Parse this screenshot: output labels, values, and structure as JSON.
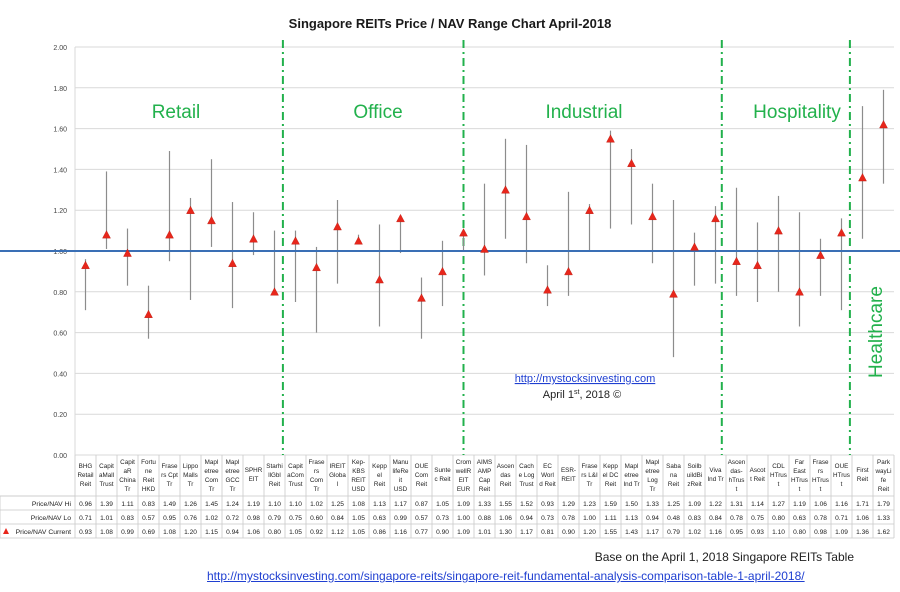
{
  "chart_data": {
    "type": "range",
    "title": "Singapore REITs Price / NAV Range Chart April-2018",
    "ylim": [
      0,
      2
    ],
    "yticks": [
      "0.00",
      "0.20",
      "0.40",
      "0.60",
      "0.80",
      "1.00",
      "1.20",
      "1.40",
      "1.60",
      "1.80",
      "2.00"
    ],
    "grid": true,
    "reference_line": 1.0,
    "categories": [
      "BHG Retail Reit",
      "CapitaMall Trust",
      "CapitaR China Tr",
      "Fortune Reit HKD",
      "Frasers Cpt Tr",
      "Lippo Malls Tr",
      "Mapletree Com Tr",
      "Mapletree GCC Tr",
      "SPHREIT",
      "Starhill Gbl Reit",
      "CapitaCom Trust",
      "Frasers Com Tr",
      "IREIT Global",
      "Kep-KBS REIT USD",
      "Keppel Reit",
      "ManulifeReit USD",
      "OUE Com Reit",
      "Suntec Reit",
      "CromwellREIT EUR",
      "AIMS AMP Cap Reit",
      "Ascendas Reit",
      "Cache Log Trust",
      "EC World Reit",
      "ESR-REIT",
      "Frasers L&I Tr",
      "Keppel DC Reit",
      "Mapletree Ind Tr",
      "Mapletree Log Tr",
      "Sabana Reit",
      "SoilbuildBizReit",
      "Viva Ind Tr",
      "Ascendas-hTrust",
      "Ascott Reit",
      "CDL HTrust",
      "Far East HTrust",
      "Frasers HTrust",
      "OUE HTrust",
      "First Reit",
      "ParkwayLife Reit"
    ],
    "category_labels": [
      [
        "BHG",
        "Retail",
        "Reit"
      ],
      [
        "Capit",
        "aMall",
        "Trust"
      ],
      [
        "Capit",
        "aR",
        "China",
        "Tr"
      ],
      [
        "Fortu",
        "ne",
        "Reit",
        "HKD"
      ],
      [
        "Frase",
        "rs Cpt",
        "Tr"
      ],
      [
        "Lippo",
        "Malls",
        "Tr"
      ],
      [
        "Mapl",
        "etree",
        "Com",
        "Tr"
      ],
      [
        "Mapl",
        "etree",
        "GCC",
        "Tr"
      ],
      [
        "SPHR",
        "EIT"
      ],
      [
        "Starhi",
        "llGbl",
        "Reit"
      ],
      [
        "Capit",
        "aCom",
        "Trust"
      ],
      [
        "Frase",
        "rs",
        "Com",
        "Tr"
      ],
      [
        "IREIT",
        "Globa",
        "l"
      ],
      [
        "Kep-",
        "KBS",
        "REIT",
        "USD"
      ],
      [
        "Kepp",
        "el",
        "Reit"
      ],
      [
        "Manu",
        "lifeRe",
        "it",
        "USD"
      ],
      [
        "OUE",
        "Com",
        "Reit"
      ],
      [
        "Sunte",
        "c Reit"
      ],
      [
        "Crom",
        "wellR",
        "EIT",
        "EUR"
      ],
      [
        "AIMS",
        "AMP",
        "Cap",
        "Reit"
      ],
      [
        "Ascen",
        "das",
        "Reit"
      ],
      [
        "Cach",
        "e Log",
        "Trust"
      ],
      [
        "EC",
        "Worl",
        "d Reit"
      ],
      [
        "ESR-",
        "REIT"
      ],
      [
        "Frase",
        "rs L&I",
        "Tr"
      ],
      [
        "Kepp",
        "el DC",
        "Reit"
      ],
      [
        "Mapl",
        "etree",
        "Ind Tr"
      ],
      [
        "Mapl",
        "etree",
        "Log",
        "Tr"
      ],
      [
        "Saba",
        "na",
        "Reit"
      ],
      [
        "Soilb",
        "uildBi",
        "zReit"
      ],
      [
        "Viva",
        "Ind Tr"
      ],
      [
        "Ascen",
        "das-",
        "hTrus",
        "t"
      ],
      [
        "Ascot",
        "t Reit"
      ],
      [
        "CDL",
        "HTrus",
        "t"
      ],
      [
        "Far",
        "East",
        "HTrus",
        "t"
      ],
      [
        "Frase",
        "rs",
        "HTrus",
        "t"
      ],
      [
        "OUE",
        "HTrus",
        "t"
      ],
      [
        "First",
        "Reit"
      ],
      [
        "Park",
        "wayLi",
        "fe",
        "Reit"
      ]
    ],
    "series": [
      {
        "name": "Price/NAV Hi",
        "values": [
          0.96,
          1.39,
          1.11,
          0.83,
          1.49,
          1.26,
          1.45,
          1.24,
          1.19,
          1.1,
          1.1,
          1.02,
          1.25,
          1.08,
          1.13,
          1.17,
          0.87,
          1.05,
          1.09,
          1.33,
          1.55,
          1.52,
          0.93,
          1.29,
          1.23,
          1.59,
          1.5,
          1.33,
          1.25,
          1.09,
          1.22,
          1.31,
          1.14,
          1.27,
          1.19,
          1.06,
          1.16,
          1.71,
          1.79
        ]
      },
      {
        "name": "Price/NAV Lo",
        "values": [
          0.71,
          1.01,
          0.83,
          0.57,
          0.95,
          0.76,
          1.02,
          0.72,
          0.98,
          0.79,
          0.75,
          0.6,
          0.84,
          1.05,
          0.63,
          0.99,
          0.57,
          0.73,
          1.0,
          0.88,
          1.06,
          0.94,
          0.73,
          0.78,
          1.0,
          1.11,
          1.13,
          0.94,
          0.48,
          0.83,
          0.84,
          0.78,
          0.75,
          0.8,
          0.63,
          0.78,
          0.71,
          1.06,
          1.33
        ]
      },
      {
        "name": "Price/NAV Current",
        "values": [
          0.93,
          1.08,
          0.99,
          0.69,
          1.08,
          1.2,
          1.15,
          0.94,
          1.06,
          0.8,
          1.05,
          0.92,
          1.12,
          1.05,
          0.86,
          1.16,
          0.77,
          0.9,
          1.09,
          1.01,
          1.3,
          1.17,
          0.81,
          0.9,
          1.2,
          1.55,
          1.43,
          1.17,
          0.79,
          1.02,
          1.16,
          0.95,
          0.93,
          1.1,
          0.8,
          0.98,
          1.09,
          1.36,
          1.62
        ]
      }
    ],
    "sector_labels": [
      "Retail",
      "Office",
      "Industrial",
      "Hospitality",
      "Healthcare"
    ],
    "sector_separators_after_index": [
      9.4,
      18,
      30.3,
      36.4
    ],
    "annotation_link": "http://mystocksinvesting.com",
    "annotation_date": "April 1",
    "annotation_date_sup": "st",
    "annotation_date_rest": ", 2018 ©"
  },
  "footer": {
    "note": "Base on the April 1, 2018 Singapore REITs Table",
    "link": "http://mystocksinvesting.com/singapore-reits/singapore-reit-fundamental-analysis-comparison-table-1-april-2018/"
  },
  "colors": {
    "sector": "#22b14c",
    "reference": "#3a6fb5",
    "marker": "#e8261b",
    "range": "#8c8c8c",
    "grid": "#d9d9d9",
    "link": "#1f3fd1"
  }
}
